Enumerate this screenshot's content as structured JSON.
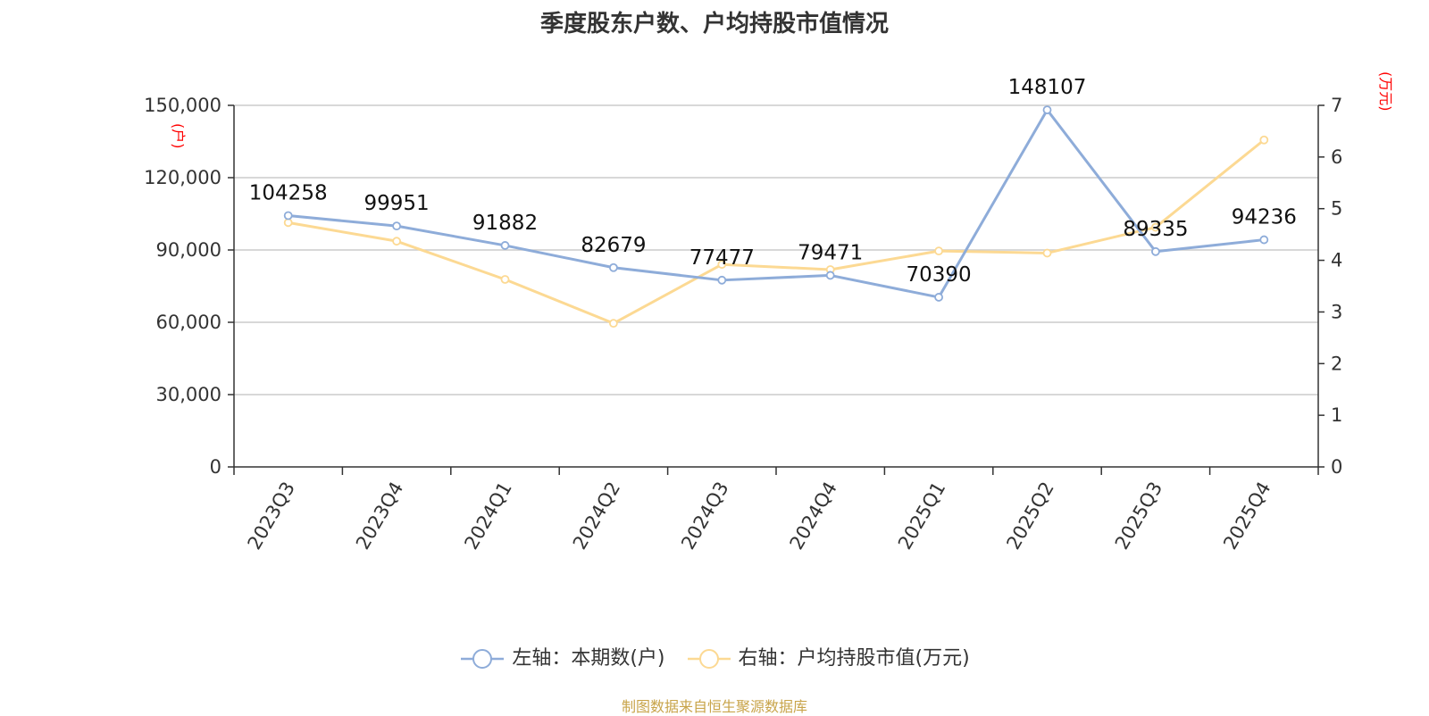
{
  "title": "季度股东户数、户均持股市值情况",
  "source": "制图数据来自恒生聚源数据库",
  "chart_data": {
    "type": "line",
    "categories": [
      "2023Q3",
      "2023Q4",
      "2024Q1",
      "2024Q2",
      "2024Q3",
      "2024Q4",
      "2025Q1",
      "2025Q2",
      "2025Q3",
      "2025Q4"
    ],
    "left_axis": {
      "unit": "(户)",
      "min": 0,
      "max": 150000,
      "ticks": [
        "0",
        "30,000",
        "60,000",
        "90,000",
        "120,000",
        "150,000"
      ],
      "tick_values": [
        0,
        30000,
        60000,
        90000,
        120000,
        150000
      ]
    },
    "right_axis": {
      "unit": "(万元)",
      "min": 0,
      "max": 7,
      "ticks": [
        "0",
        "1",
        "2",
        "3",
        "4",
        "5",
        "6",
        "7"
      ],
      "tick_values": [
        0,
        1,
        2,
        3,
        4,
        5,
        6,
        7
      ]
    },
    "grid": true,
    "legend_position": "bottom",
    "series": [
      {
        "name": "左轴：本期数(户)",
        "axis": "left",
        "color": "#8eacd9",
        "values": [
          104258,
          99951,
          91882,
          82679,
          77477,
          79471,
          70390,
          148107,
          89335,
          94236
        ],
        "labels": [
          "104258",
          "99951",
          "91882",
          "82679",
          "77477",
          "79471",
          "70390",
          "148107",
          "89335",
          "94236"
        ]
      },
      {
        "name": "右轴：户均持股市值(万元)",
        "axis": "right",
        "color": "#fcd993",
        "values": [
          4.73,
          4.37,
          3.63,
          2.78,
          3.92,
          3.82,
          4.18,
          4.14,
          4.64,
          6.33
        ]
      }
    ]
  }
}
